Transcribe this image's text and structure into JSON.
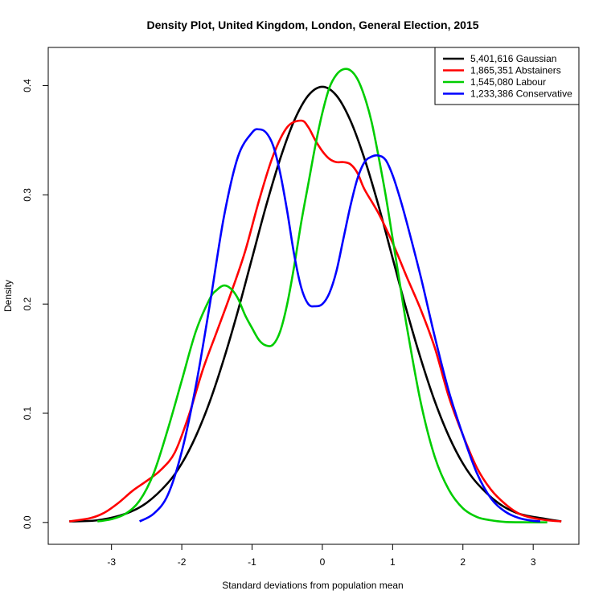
{
  "chart_data": {
    "type": "line",
    "title": "Density Plot, United Kingdom, London, General Election, 2015",
    "xlabel": "Standard deviations from population mean",
    "ylabel": "Density",
    "xlim": [
      -3.9,
      3.65
    ],
    "ylim": [
      -0.02,
      0.435
    ],
    "x_ticks": [
      -3,
      -2,
      -1,
      0,
      1,
      2,
      3
    ],
    "x_tick_labels": [
      "-3",
      "-2",
      "-1",
      "0",
      "1",
      "2",
      "3"
    ],
    "y_ticks": [
      0.0,
      0.1,
      0.2,
      0.3,
      0.4
    ],
    "y_tick_labels": [
      "0.0",
      "0.1",
      "0.2",
      "0.3",
      "0.4"
    ],
    "grid": false,
    "legend_position": "top-right",
    "series": [
      {
        "name": "5,401,616 Gaussian",
        "color": "#000000",
        "x": [
          -3.6,
          -3.2,
          -2.8,
          -2.5,
          -2.2,
          -2.0,
          -1.8,
          -1.6,
          -1.4,
          -1.2,
          -1.0,
          -0.8,
          -0.6,
          -0.4,
          -0.2,
          0.0,
          0.2,
          0.4,
          0.6,
          0.8,
          1.0,
          1.2,
          1.4,
          1.6,
          1.8,
          2.0,
          2.2,
          2.5,
          2.8,
          3.2,
          3.4
        ],
        "y": [
          0.001,
          0.002,
          0.008,
          0.018,
          0.036,
          0.054,
          0.079,
          0.111,
          0.15,
          0.194,
          0.242,
          0.29,
          0.333,
          0.368,
          0.391,
          0.399,
          0.391,
          0.368,
          0.333,
          0.29,
          0.242,
          0.194,
          0.15,
          0.111,
          0.079,
          0.054,
          0.036,
          0.018,
          0.008,
          0.003,
          0.001
        ]
      },
      {
        "name": "1,865,351 Abstainers",
        "color": "#ff0000",
        "x": [
          -3.6,
          -3.3,
          -3.1,
          -2.9,
          -2.7,
          -2.5,
          -2.3,
          -2.1,
          -1.9,
          -1.7,
          -1.5,
          -1.3,
          -1.1,
          -0.9,
          -0.7,
          -0.5,
          -0.3,
          -0.2,
          -0.1,
          0.0,
          0.1,
          0.2,
          0.3,
          0.4,
          0.5,
          0.6,
          0.8,
          1.0,
          1.2,
          1.4,
          1.6,
          1.8,
          2.0,
          2.2,
          2.4,
          2.6,
          2.8,
          3.0,
          3.2,
          3.4
        ],
        "y": [
          0.001,
          0.004,
          0.009,
          0.018,
          0.029,
          0.038,
          0.048,
          0.064,
          0.098,
          0.14,
          0.175,
          0.21,
          0.248,
          0.295,
          0.336,
          0.362,
          0.368,
          0.362,
          0.35,
          0.34,
          0.333,
          0.33,
          0.33,
          0.328,
          0.32,
          0.305,
          0.283,
          0.256,
          0.225,
          0.195,
          0.16,
          0.115,
          0.08,
          0.05,
          0.03,
          0.017,
          0.008,
          0.004,
          0.002,
          0.001
        ]
      },
      {
        "name": "1,545,080 Labour",
        "color": "#00cd00",
        "x": [
          -3.2,
          -3.0,
          -2.8,
          -2.6,
          -2.4,
          -2.2,
          -2.0,
          -1.8,
          -1.6,
          -1.5,
          -1.4,
          -1.3,
          -1.2,
          -1.1,
          -1.0,
          -0.9,
          -0.8,
          -0.7,
          -0.6,
          -0.5,
          -0.4,
          -0.3,
          -0.2,
          -0.1,
          0.0,
          0.1,
          0.2,
          0.3,
          0.4,
          0.5,
          0.6,
          0.7,
          0.8,
          0.9,
          1.0,
          1.1,
          1.2,
          1.4,
          1.6,
          1.8,
          2.0,
          2.2,
          2.4,
          2.6,
          2.8,
          3.0,
          3.2
        ],
        "y": [
          0.001,
          0.003,
          0.008,
          0.02,
          0.045,
          0.085,
          0.13,
          0.175,
          0.205,
          0.213,
          0.217,
          0.214,
          0.205,
          0.19,
          0.178,
          0.167,
          0.162,
          0.163,
          0.175,
          0.2,
          0.235,
          0.275,
          0.31,
          0.345,
          0.375,
          0.398,
          0.41,
          0.415,
          0.414,
          0.406,
          0.39,
          0.367,
          0.335,
          0.3,
          0.26,
          0.22,
          0.18,
          0.11,
          0.06,
          0.03,
          0.013,
          0.005,
          0.002,
          0.0005,
          0.0002,
          0.0001,
          0.0001
        ]
      },
      {
        "name": "1,233,386 Conservative",
        "color": "#0000ff",
        "x": [
          -2.6,
          -2.4,
          -2.2,
          -2.0,
          -1.8,
          -1.6,
          -1.4,
          -1.2,
          -1.0,
          -0.9,
          -0.8,
          -0.7,
          -0.6,
          -0.5,
          -0.4,
          -0.3,
          -0.2,
          -0.1,
          0.0,
          0.1,
          0.2,
          0.3,
          0.4,
          0.5,
          0.6,
          0.7,
          0.8,
          0.9,
          1.0,
          1.1,
          1.2,
          1.4,
          1.6,
          1.8,
          2.0,
          2.2,
          2.4,
          2.6,
          2.8,
          3.0,
          3.1
        ],
        "y": [
          0.001,
          0.008,
          0.025,
          0.065,
          0.125,
          0.2,
          0.28,
          0.335,
          0.357,
          0.36,
          0.357,
          0.345,
          0.32,
          0.285,
          0.245,
          0.215,
          0.2,
          0.198,
          0.2,
          0.21,
          0.23,
          0.26,
          0.29,
          0.315,
          0.33,
          0.335,
          0.336,
          0.332,
          0.318,
          0.298,
          0.275,
          0.225,
          0.17,
          0.12,
          0.08,
          0.045,
          0.022,
          0.01,
          0.004,
          0.0015,
          0.001
        ]
      }
    ]
  }
}
